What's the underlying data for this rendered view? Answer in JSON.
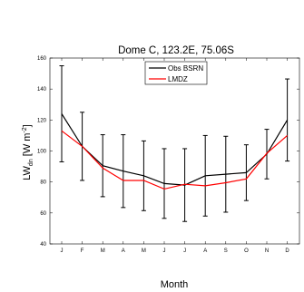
{
  "chart_data": {
    "type": "line",
    "title": "Dome C, 123.2E, 75.06S",
    "xlabel": "Month",
    "ylabel": {
      "main": "LW",
      "sub": "dn",
      "unit_pre": " [W m",
      "unit_sup": "-2",
      "unit_post": "]"
    },
    "categories": [
      "J",
      "F",
      "M",
      "A",
      "M",
      "J",
      "J",
      "A",
      "S",
      "O",
      "N",
      "D"
    ],
    "ylim": [
      40,
      160
    ],
    "yticks": [
      40,
      60,
      80,
      100,
      120,
      140,
      160
    ],
    "grid": false,
    "legend_position": "top-center",
    "series": [
      {
        "name": "Obs BSRN",
        "color": "#000000",
        "values": [
          124,
          103,
          90.5,
          87,
          84,
          79,
          78,
          84,
          85,
          86,
          98,
          120
        ],
        "error": [
          31,
          22,
          20,
          23.5,
          22.5,
          22.5,
          23.5,
          26,
          24.5,
          18,
          16,
          26.5
        ]
      },
      {
        "name": "LMDZ",
        "color": "#ff0000",
        "values": [
          113,
          103,
          89,
          81,
          81,
          75.5,
          78.5,
          77.5,
          79.5,
          82,
          98.5,
          110
        ]
      }
    ]
  }
}
